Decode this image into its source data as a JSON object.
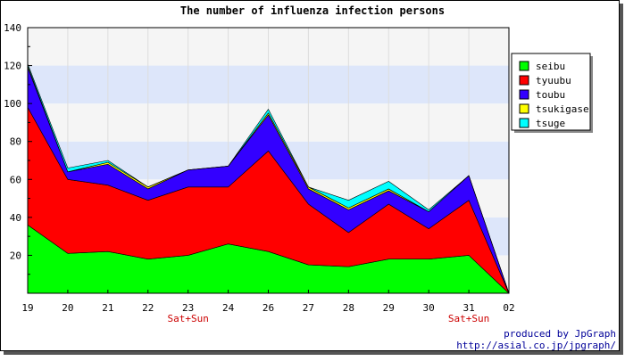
{
  "chart_data": {
    "type": "area",
    "stacked": true,
    "title": "The number of influenza infection persons",
    "categories": [
      "19",
      "20",
      "21",
      "22",
      "23",
      "24",
      "26",
      "27",
      "28",
      "29",
      "30",
      "31",
      "02"
    ],
    "sublabels": [
      "",
      "",
      "",
      "",
      "Sat+Sun",
      "",
      "",
      "",
      "",
      "",
      "",
      "Sat+Sun",
      ""
    ],
    "ylim": [
      0,
      140
    ],
    "yticks": [
      20,
      40,
      60,
      80,
      100,
      120,
      140
    ],
    "grid": true,
    "legend_position": "right",
    "series": [
      {
        "name": "seibu",
        "color": "#00ff00",
        "values": [
          36,
          21,
          22,
          18,
          20,
          26,
          22,
          15,
          14,
          18,
          18,
          20,
          0
        ]
      },
      {
        "name": "tyuubu",
        "color": "#ff0000",
        "values": [
          62,
          39,
          35,
          31,
          36,
          30,
          53,
          32,
          18,
          29,
          16,
          29,
          0
        ]
      },
      {
        "name": "toubu",
        "color": "#3300ff",
        "values": [
          21,
          4,
          11,
          6,
          9,
          11,
          19,
          8,
          12,
          7,
          9,
          13,
          0
        ]
      },
      {
        "name": "tsukigase",
        "color": "#ffff00",
        "values": [
          1,
          0,
          1,
          1,
          0,
          0,
          1,
          1,
          1,
          1,
          0,
          0,
          0
        ]
      },
      {
        "name": "tsuge",
        "color": "#00ffff",
        "values": [
          1,
          2,
          1,
          0,
          0,
          0,
          2,
          0,
          4,
          4,
          1,
          0,
          0
        ]
      }
    ]
  },
  "footer": {
    "line1": "produced by JpGraph",
    "line2": "http://asial.co.jp/jpgraph/"
  }
}
